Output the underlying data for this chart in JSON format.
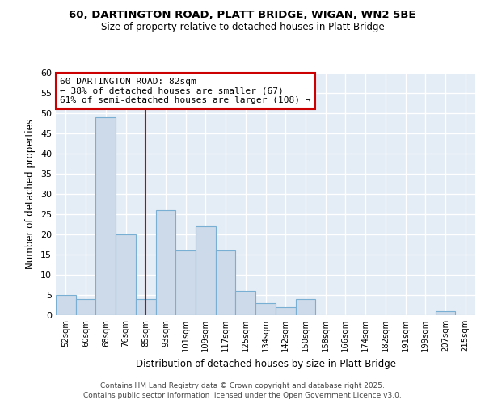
{
  "title_line1": "60, DARTINGTON ROAD, PLATT BRIDGE, WIGAN, WN2 5BE",
  "title_line2": "Size of property relative to detached houses in Platt Bridge",
  "xlabel": "Distribution of detached houses by size in Platt Bridge",
  "ylabel": "Number of detached properties",
  "bar_color": "#ccdaea",
  "bar_edge_color": "#7aafd4",
  "plot_bg_color": "#e4ecf5",
  "fig_bg_color": "#ffffff",
  "grid_color": "#ffffff",
  "bins": [
    "52sqm",
    "60sqm",
    "68sqm",
    "76sqm",
    "85sqm",
    "93sqm",
    "101sqm",
    "109sqm",
    "117sqm",
    "125sqm",
    "134sqm",
    "142sqm",
    "150sqm",
    "158sqm",
    "166sqm",
    "174sqm",
    "182sqm",
    "191sqm",
    "199sqm",
    "207sqm",
    "215sqm"
  ],
  "values": [
    5,
    4,
    49,
    20,
    4,
    26,
    16,
    22,
    16,
    6,
    3,
    2,
    4,
    0,
    0,
    0,
    0,
    0,
    0,
    1,
    0
  ],
  "red_line_x": 4.0,
  "annotation_text": "60 DARTINGTON ROAD: 82sqm\n← 38% of detached houses are smaller (67)\n61% of semi-detached houses are larger (108) →",
  "annotation_box_facecolor": "#ffffff",
  "annotation_border_color": "#cc0000",
  "red_line_color": "#cc0000",
  "ylim": [
    0,
    60
  ],
  "yticks": [
    0,
    5,
    10,
    15,
    20,
    25,
    30,
    35,
    40,
    45,
    50,
    55,
    60
  ],
  "footer_line1": "Contains HM Land Registry data © Crown copyright and database right 2025.",
  "footer_line2": "Contains public sector information licensed under the Open Government Licence v3.0."
}
